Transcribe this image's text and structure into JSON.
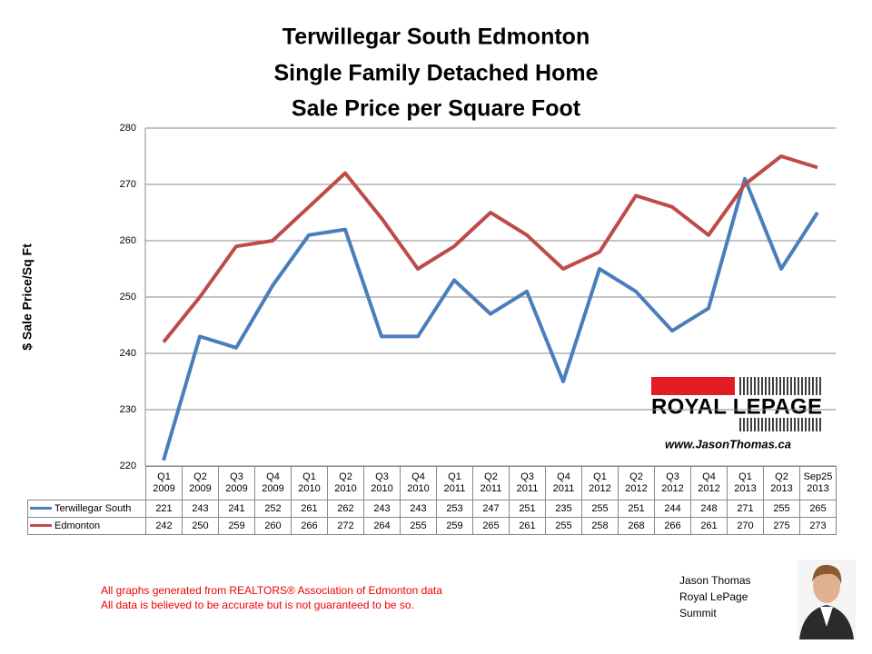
{
  "chart_data": {
    "type": "line",
    "title": "Terwillegar South Edmonton",
    "subtitle": [
      "Single Family Detached Home",
      "Sale Price per Square Foot"
    ],
    "y_label": "$ Sale Price/Sq Ft",
    "categories": [
      "Q1\n2009",
      "Q2\n2009",
      "Q3\n2009",
      "Q4\n2009",
      "Q1\n2010",
      "Q2\n2010",
      "Q3\n2010",
      "Q4\n2010",
      "Q1\n2011",
      "Q2\n2011",
      "Q3\n2011",
      "Q4\n2011",
      "Q1\n2012",
      "Q2\n2012",
      "Q3\n2012",
      "Q4\n2012",
      "Q1\n2013",
      "Q2\n2013",
      "Sep25\n2013"
    ],
    "series": [
      {
        "name": "Terwillegar South",
        "color": "#4a7ebb",
        "values": [
          221,
          243,
          241,
          252,
          261,
          262,
          243,
          243,
          253,
          247,
          251,
          235,
          255,
          251,
          244,
          248,
          271,
          255,
          265
        ]
      },
      {
        "name": "Edmonton",
        "color": "#be4b48",
        "values": [
          242,
          250,
          259,
          260,
          266,
          272,
          264,
          255,
          259,
          265,
          261,
          255,
          258,
          268,
          266,
          261,
          270,
          275,
          273
        ]
      }
    ],
    "ylim": [
      220,
      280
    ],
    "yticks": [
      220,
      230,
      240,
      250,
      260,
      270,
      280
    ],
    "grid": true
  },
  "branding": {
    "logo": "ROYAL LEPAGE",
    "website": "www.JasonThomas.ca",
    "agent": [
      "Jason Thomas",
      "Royal LePage",
      "Summit"
    ]
  },
  "footer": [
    "All graphs generated from REALTORS® Association of Edmonton data",
    "All data is believed to be accurate but is not guaranteed to be so."
  ]
}
